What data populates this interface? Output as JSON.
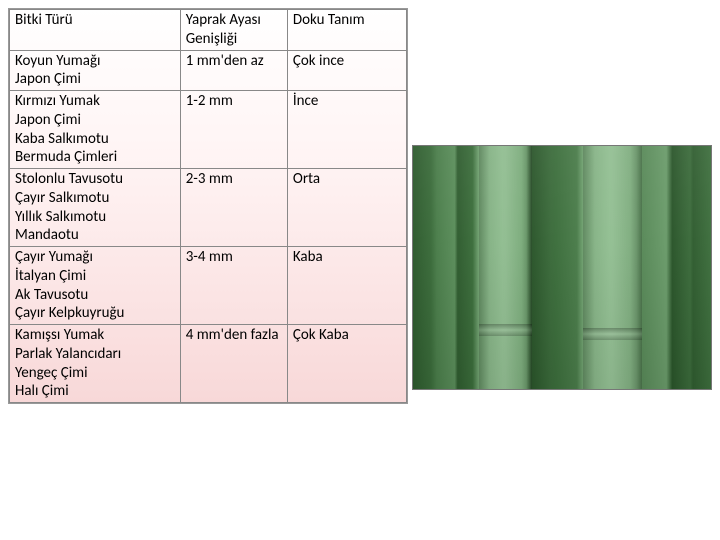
{
  "table": {
    "header": {
      "col1": "Bitki Türü",
      "col2": "Yaprak Ayası Genişliği",
      "col3": "Doku Tanım"
    },
    "rows": [
      {
        "species": "Koyun Yumağı\nJapon Çimi",
        "width": "1 mm'den az",
        "texture": "Çok ince"
      },
      {
        "species": "Kırmızı Yumak\nJapon Çimi\nKaba Salkımotu\nBermuda Çimleri",
        "width": "1-2 mm",
        "texture": "İnce"
      },
      {
        "species": "Stolonlu Tavusotu\nÇayır Salkımotu\nYıllık Salkımotu\nMandaotu",
        "width": "2-3 mm",
        "texture": "Orta"
      },
      {
        "species": "Çayır Yumağı\nİtalyan Çimi\nAk Tavusotu\nÇayır Kelpkuyruğu",
        "width": "3-4 mm",
        "texture": "Kaba"
      },
      {
        "species": "Kamışsı Yumak\nParlak Yalancıdarı\nYengeç Çimi\nHalı Çimi",
        "width": "4 mm'den fazla",
        "texture": "Çok Kaba"
      }
    ]
  },
  "colors": {
    "background_top": "#ffffff",
    "background_bottom": "#f8d8d8",
    "border": "#888888",
    "text": "#000000",
    "leaf_dark": "#2d5a2d",
    "leaf_light": "#7ab07a"
  },
  "typography": {
    "font_family": "Calibri",
    "font_size_pt": 11
  },
  "image": {
    "description": "grass-leaf-blades-closeup",
    "position": "right-center"
  }
}
